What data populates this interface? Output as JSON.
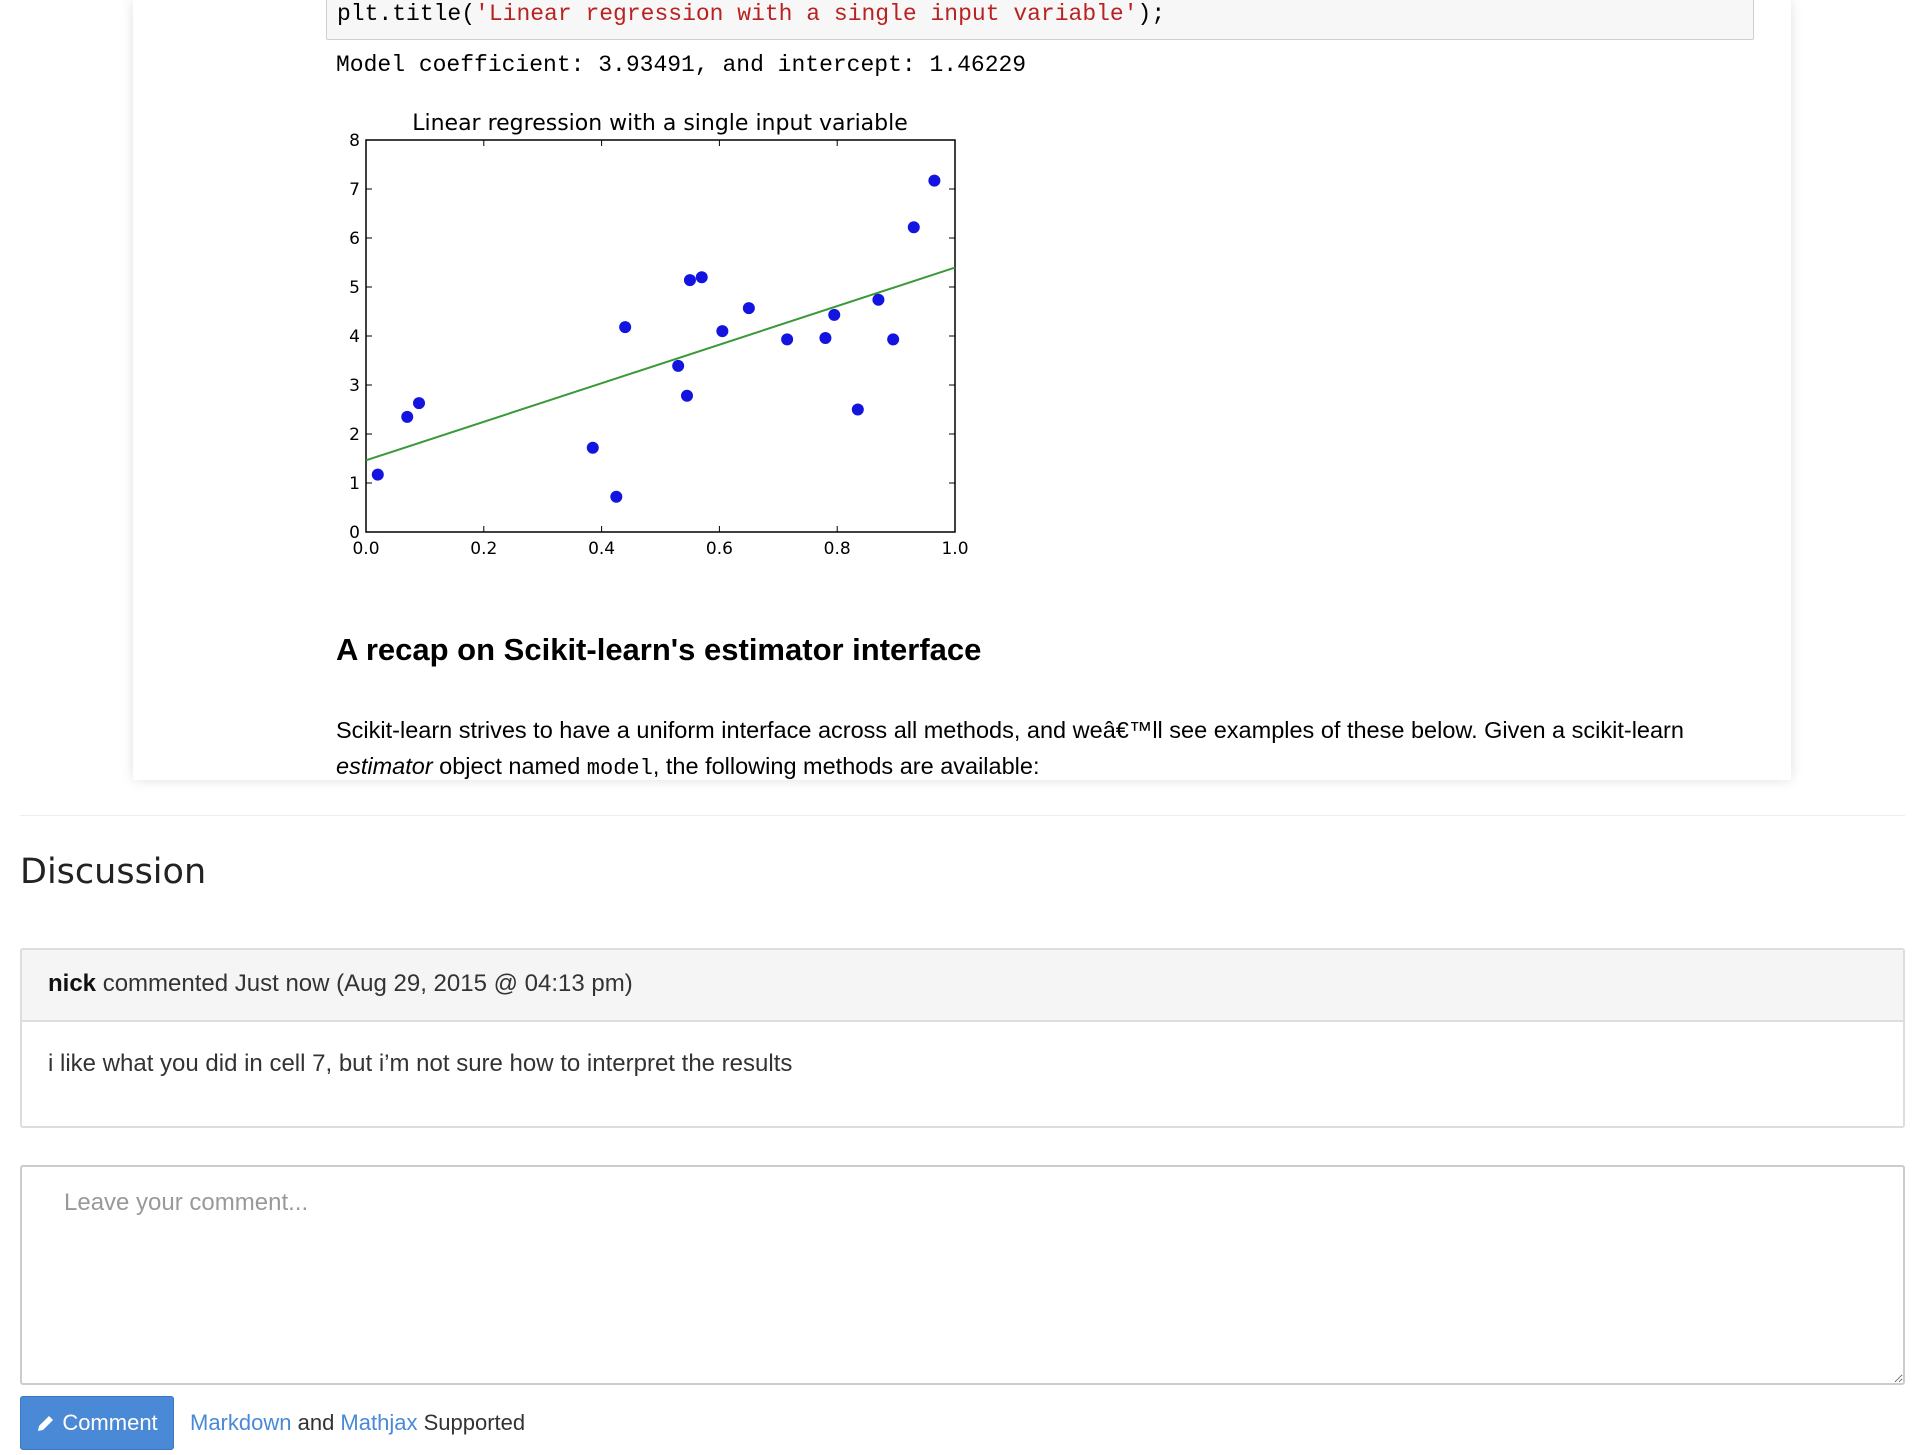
{
  "code_cell": {
    "prefix": "plt.title(",
    "string": "'Linear regression with a single input variable'",
    "suffix": ");"
  },
  "output_text": "Model coefficient: 3.93491, and intercept: 1.46229",
  "chart_data": {
    "type": "scatter",
    "title": "Linear regression with a single input variable",
    "xlim": [
      0,
      1
    ],
    "ylim": [
      0,
      8
    ],
    "xticks": [
      "0.0",
      "0.2",
      "0.4",
      "0.6",
      "0.8",
      "1.0"
    ],
    "yticks": [
      "0",
      "1",
      "2",
      "3",
      "4",
      "5",
      "6",
      "7",
      "8"
    ],
    "grid": false,
    "points": [
      [
        0.02,
        1.17
      ],
      [
        0.07,
        2.35
      ],
      [
        0.09,
        2.63
      ],
      [
        0.385,
        1.72
      ],
      [
        0.425,
        0.72
      ],
      [
        0.44,
        4.18
      ],
      [
        0.53,
        3.39
      ],
      [
        0.545,
        2.78
      ],
      [
        0.55,
        5.14
      ],
      [
        0.57,
        5.2
      ],
      [
        0.605,
        4.1
      ],
      [
        0.65,
        4.57
      ],
      [
        0.715,
        3.93
      ],
      [
        0.78,
        3.96
      ],
      [
        0.795,
        4.43
      ],
      [
        0.835,
        2.5
      ],
      [
        0.87,
        4.74
      ],
      [
        0.895,
        3.93
      ],
      [
        0.93,
        6.22
      ],
      [
        0.965,
        7.17
      ]
    ],
    "fit_line": {
      "slope": 3.93491,
      "intercept": 1.46229
    },
    "colors": {
      "points": "#1414e0",
      "line": "#3a9a3a"
    }
  },
  "section": {
    "heading": "A recap on Scikit-learn's estimator interface",
    "para_1": "Scikit-learn strives to have a uniform interface across all methods, and weâ€™ll see examples of these below. Given a scikit-learn ",
    "para_em": "estimator",
    "para_2": " object named ",
    "para_code": "model",
    "para_3": ", the following methods are available:"
  },
  "discussion": {
    "title": "Discussion",
    "comment": {
      "author": "nick",
      "meta": " commented Just now (Aug 29, 2015 @ 04:13 pm)",
      "body": "i like what you did in cell 7, but i’m not sure how to interpret the results"
    },
    "placeholder": "Leave your comment...",
    "button": "Comment",
    "button_icon": "pencil-icon",
    "help_link1": "Markdown",
    "help_and": " and ",
    "help_link2": "Mathjax",
    "help_tail": " Supported",
    "accent": "#4a89d6"
  }
}
